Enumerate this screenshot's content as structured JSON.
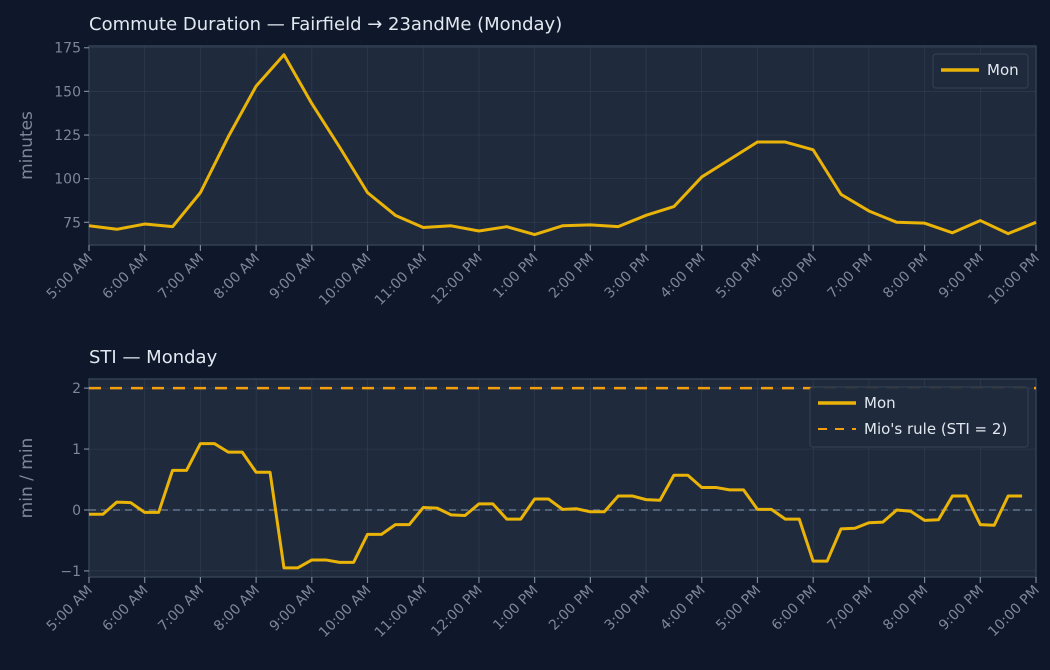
{
  "colors": {
    "background": "#0f172a",
    "panel": "#1f2a3c",
    "grid": "#334155",
    "series": "#eab308",
    "rule": "#f59e0b",
    "zero": "#64748b",
    "text": "#e2e8f0",
    "tick": "#7c879a"
  },
  "chart_data": [
    {
      "type": "line",
      "title": "Commute Duration — Fairfield → 23andMe (Monday)",
      "xlabel": "",
      "ylabel": "minutes",
      "tick_labels": [
        "5:00 AM",
        "6:00 AM",
        "7:00 AM",
        "8:00 AM",
        "9:00 AM",
        "10:00 AM",
        "11:00 AM",
        "12:00 PM",
        "1:00 PM",
        "2:00 PM",
        "3:00 PM",
        "4:00 PM",
        "5:00 PM",
        "6:00 PM",
        "7:00 PM",
        "8:00 PM",
        "9:00 PM",
        "10:00 PM"
      ],
      "xlim": [
        "5:00 AM",
        "10:00 PM"
      ],
      "ylim": [
        62,
        176
      ],
      "yticks": [
        75,
        100,
        125,
        150,
        175
      ],
      "grid": true,
      "legend": "top-right",
      "x": [
        "5:00 AM",
        "5:30 AM",
        "6:00 AM",
        "6:30 AM",
        "7:00 AM",
        "7:30 AM",
        "8:00 AM",
        "8:30 AM",
        "9:00 AM",
        "9:30 AM",
        "10:00 AM",
        "10:30 AM",
        "11:00 AM",
        "11:30 AM",
        "12:00 PM",
        "12:30 PM",
        "1:00 PM",
        "1:30 PM",
        "2:00 PM",
        "2:30 PM",
        "3:00 PM",
        "3:30 PM",
        "4:00 PM",
        "4:30 PM",
        "5:00 PM",
        "5:30 PM",
        "6:00 PM",
        "6:30 PM",
        "7:00 PM",
        "7:30 PM",
        "8:00 PM",
        "8:30 PM",
        "9:00 PM",
        "9:30 PM",
        "10:00 PM"
      ],
      "series": [
        {
          "name": "Mon",
          "values": [
            73,
            71,
            74,
            72.5,
            92,
            124,
            153,
            171,
            143,
            118,
            92,
            79,
            72,
            73,
            70,
            72.5,
            68,
            73,
            73.5,
            72.5,
            79,
            84,
            101,
            111,
            121,
            121,
            116.5,
            91,
            81.5,
            75,
            74.5,
            69,
            76,
            68.5,
            75
          ]
        }
      ]
    },
    {
      "type": "line",
      "title": "STI — Monday",
      "xlabel": "",
      "ylabel": "min / min",
      "tick_labels": [
        "5:00 AM",
        "6:00 AM",
        "7:00 AM",
        "8:00 AM",
        "9:00 AM",
        "10:00 AM",
        "11:00 AM",
        "12:00 PM",
        "1:00 PM",
        "2:00 PM",
        "3:00 PM",
        "4:00 PM",
        "5:00 PM",
        "6:00 PM",
        "7:00 PM",
        "8:00 PM",
        "9:00 PM",
        "10:00 PM"
      ],
      "xlim": [
        "5:00 AM",
        "10:00 PM"
      ],
      "ylim": [
        -1.1,
        2.15
      ],
      "yticks": [
        -1,
        0,
        1,
        2
      ],
      "grid": true,
      "legend": "top-right",
      "x_start": "5:00 AM",
      "x_step_minutes": 15,
      "series": [
        {
          "name": "Mon",
          "values": [
            -0.07,
            -0.07,
            0.13,
            0.12,
            -0.04,
            -0.04,
            0.65,
            0.65,
            1.09,
            1.09,
            0.95,
            0.95,
            0.62,
            0.62,
            -0.95,
            -0.95,
            -0.82,
            -0.82,
            -0.86,
            -0.86,
            -0.4,
            -0.4,
            -0.24,
            -0.24,
            0.04,
            0.03,
            -0.08,
            -0.09,
            0.1,
            0.1,
            -0.15,
            -0.15,
            0.18,
            0.18,
            0.01,
            0.02,
            -0.03,
            -0.03,
            0.23,
            0.23,
            0.17,
            0.16,
            0.57,
            0.57,
            0.37,
            0.37,
            0.33,
            0.33,
            0.01,
            0.01,
            -0.15,
            -0.15,
            -0.84,
            -0.84,
            -0.31,
            -0.3,
            -0.21,
            -0.2,
            0.0,
            -0.02,
            -0.17,
            -0.16,
            0.23,
            0.23,
            -0.24,
            -0.25,
            0.23,
            0.23
          ]
        },
        {
          "name": "Mio's rule (STI = 2)",
          "constant": 2,
          "style": "dashed"
        }
      ],
      "reference_lines": [
        {
          "y": 0,
          "style": "dashed"
        }
      ]
    }
  ]
}
